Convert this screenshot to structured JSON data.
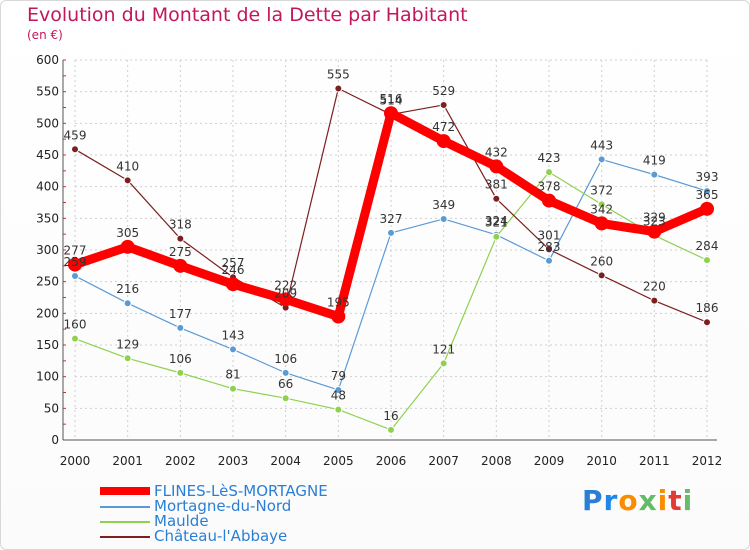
{
  "title": "Evolution du Montant de la Dette par Habitant",
  "subtitle": "(en €)",
  "logo": {
    "text": "Proxiti",
    "letter_colors": [
      "#2a7fd4",
      "#1e88e5",
      "#fb8c00",
      "#66bb6a",
      "#fb8c00",
      "#e53935",
      "#66bb6a"
    ]
  },
  "chart_data": {
    "type": "line",
    "categories": [
      "2000",
      "2001",
      "2002",
      "2003",
      "2004",
      "2005",
      "2006",
      "2007",
      "2008",
      "2009",
      "2010",
      "2011",
      "2012"
    ],
    "ylim": [
      0,
      600
    ],
    "yticks": [
      0,
      50,
      100,
      150,
      200,
      250,
      300,
      350,
      400,
      450,
      500,
      550,
      600
    ],
    "grid": true,
    "legend_position": "bottom-left",
    "series": [
      {
        "name": "FLINES-LèS-MORTAGNE",
        "color": "#ff0000",
        "values": [
          277,
          305,
          275,
          246,
          222,
          195,
          516,
          472,
          432,
          378,
          342,
          329,
          365
        ]
      },
      {
        "name": "Mortagne-du-Nord",
        "color": "#5b9bd5",
        "values": [
          259,
          216,
          177,
          143,
          106,
          79,
          327,
          349,
          324,
          283,
          443,
          419,
          393
        ]
      },
      {
        "name": "Maulde",
        "color": "#8fd14f",
        "values": [
          160,
          129,
          106,
          81,
          66,
          48,
          16,
          121,
          321,
          423,
          372,
          323,
          284
        ]
      },
      {
        "name": "Château-l'Abbaye",
        "color": "#7b1f1f",
        "values": [
          459,
          410,
          318,
          257,
          209,
          555,
          514,
          529,
          381,
          301,
          260,
          220,
          186
        ]
      }
    ]
  }
}
